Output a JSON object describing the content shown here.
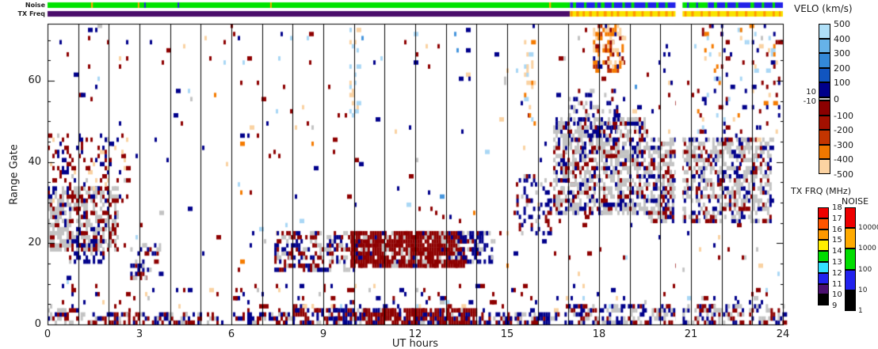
{
  "strips": {
    "noise_label": "Noise",
    "tx_label": "TX Freq",
    "noise_segments": [
      {
        "h": [
          0,
          17.05
        ],
        "color": "#00e300"
      },
      {
        "h": [
          17.05,
          20.5
        ],
        "color": "#2222e8"
      },
      {
        "h": [
          20.72,
          21.55
        ],
        "color": "#00e300"
      },
      {
        "h": [
          21.55,
          24
        ],
        "color": "#2222e8"
      }
    ],
    "noise_stripes": [
      {
        "h": 1.45,
        "w": 0.06,
        "color": "#ffaa00"
      },
      {
        "h": 2.97,
        "w": 0.05,
        "color": "#ffaa00"
      },
      {
        "h": 3.18,
        "w": 0.05,
        "color": "#2222e8"
      },
      {
        "h": 4.27,
        "w": 0.05,
        "color": "#2222e8"
      },
      {
        "h": 7.29,
        "w": 0.05,
        "color": "#ffaa00"
      },
      {
        "h": 16.4,
        "w": 0.06,
        "color": "#ffaa00"
      },
      {
        "h": 17.2,
        "w": 0.1,
        "color": "#00e300"
      },
      {
        "h": 17.55,
        "w": 0.08,
        "color": "#00e300"
      },
      {
        "h": 17.9,
        "w": 0.08,
        "color": "#00e300"
      },
      {
        "h": 18.12,
        "w": 0.12,
        "color": "#00e300"
      },
      {
        "h": 18.45,
        "w": 0.08,
        "color": "#00e300"
      },
      {
        "h": 18.8,
        "w": 0.08,
        "color": "#00e300"
      },
      {
        "h": 19.1,
        "w": 0.1,
        "color": "#00e300"
      },
      {
        "h": 19.55,
        "w": 0.08,
        "color": "#00e300"
      },
      {
        "h": 19.9,
        "w": 0.08,
        "color": "#00e300"
      },
      {
        "h": 20.2,
        "w": 0.08,
        "color": "#00e300"
      },
      {
        "h": 20.9,
        "w": 0.06,
        "color": "#2222e8"
      },
      {
        "h": 21.2,
        "w": 0.06,
        "color": "#2222e8"
      },
      {
        "h": 21.8,
        "w": 0.1,
        "color": "#00e300"
      },
      {
        "h": 22.15,
        "w": 0.08,
        "color": "#00e300"
      },
      {
        "h": 22.5,
        "w": 0.08,
        "color": "#00e300"
      },
      {
        "h": 23.0,
        "w": 0.12,
        "color": "#00e300"
      },
      {
        "h": 23.35,
        "w": 0.08,
        "color": "#00e300"
      },
      {
        "h": 23.7,
        "w": 0.08,
        "color": "#00e300"
      }
    ],
    "tx_segments": [
      {
        "h": [
          0,
          17.05
        ],
        "color": "#4a0d6b"
      },
      {
        "h": [
          17.05,
          20.5
        ],
        "color": "#f8e300"
      },
      {
        "h": [
          20.72,
          24
        ],
        "color": "#f8e300"
      }
    ],
    "tx_stripes": [
      {
        "h": 17.1,
        "w": 0.07,
        "color": "#ff9900"
      },
      {
        "h": 17.3,
        "w": 0.09,
        "color": "#ff9900"
      },
      {
        "h": 17.5,
        "w": 0.07,
        "color": "#ff9900"
      },
      {
        "h": 17.72,
        "w": 0.09,
        "color": "#ff9900"
      },
      {
        "h": 17.95,
        "w": 0.07,
        "color": "#ff9900"
      },
      {
        "h": 18.2,
        "w": 0.1,
        "color": "#ff9900"
      },
      {
        "h": 18.42,
        "w": 0.07,
        "color": "#ff9900"
      },
      {
        "h": 18.62,
        "w": 0.08,
        "color": "#ff9900"
      },
      {
        "h": 18.9,
        "w": 0.07,
        "color": "#ff9900"
      },
      {
        "h": 19.15,
        "w": 0.09,
        "color": "#ff9900"
      },
      {
        "h": 19.42,
        "w": 0.07,
        "color": "#ff9900"
      },
      {
        "h": 19.7,
        "w": 0.08,
        "color": "#ff9900"
      },
      {
        "h": 19.95,
        "w": 0.07,
        "color": "#ff9900"
      },
      {
        "h": 20.2,
        "w": 0.08,
        "color": "#ff9900"
      },
      {
        "h": 20.4,
        "w": 0.06,
        "color": "#ff9900"
      },
      {
        "h": 20.82,
        "w": 0.07,
        "color": "#ff9900"
      },
      {
        "h": 21.05,
        "w": 0.08,
        "color": "#ff9900"
      },
      {
        "h": 21.35,
        "w": 0.07,
        "color": "#ff9900"
      },
      {
        "h": 21.6,
        "w": 0.08,
        "color": "#ff9900"
      },
      {
        "h": 21.9,
        "w": 0.07,
        "color": "#ff9900"
      },
      {
        "h": 22.2,
        "w": 0.09,
        "color": "#ff9900"
      },
      {
        "h": 22.5,
        "w": 0.07,
        "color": "#ff9900"
      },
      {
        "h": 22.8,
        "w": 0.08,
        "color": "#ff9900"
      },
      {
        "h": 23.1,
        "w": 0.07,
        "color": "#ff9900"
      },
      {
        "h": 23.4,
        "w": 0.08,
        "color": "#ff9900"
      },
      {
        "h": 23.7,
        "w": 0.07,
        "color": "#ff9900"
      },
      {
        "h": 23.9,
        "w": 0.06,
        "color": "#ff9900"
      }
    ]
  },
  "axes": {
    "x": {
      "title": "UT hours",
      "min": 0,
      "max": 24,
      "major_ticks": [
        0,
        3,
        6,
        9,
        12,
        15,
        18,
        21,
        24
      ],
      "tick_labels": [
        "0",
        "3",
        "6",
        "9",
        "12",
        "15",
        "18",
        "21",
        "24"
      ],
      "minor_step": 1
    },
    "y": {
      "title": "Range Gate",
      "min": 0,
      "max": 74,
      "major_ticks": [
        0,
        20,
        40,
        60
      ],
      "tick_labels": [
        "0",
        "20",
        "40",
        "60"
      ],
      "minor_step": 5
    }
  },
  "legends": {
    "velo": {
      "title": "VELO (km/s)",
      "tick_labels": [
        "500",
        "400",
        "300",
        "200",
        "100",
        "0",
        "-100",
        "-200",
        "-300",
        "-400",
        "-500"
      ],
      "zero_band_labels": [
        "10",
        "-10"
      ],
      "colors_top_to_bottom": [
        "#b0e0f8",
        "#66b2e8",
        "#3388d8",
        "#1155c0",
        "#00008b",
        "#c3c3c3",
        "#8b0000",
        "#a31000",
        "#c33500",
        "#f07800",
        "#fcd3a2"
      ]
    },
    "txfrq": {
      "title": "TX FRQ (MHz)",
      "tick_labels": [
        "18",
        "17",
        "16",
        "15",
        "14",
        "13",
        "12",
        "11",
        "10",
        "9"
      ],
      "colors_top_to_bottom": [
        "#ee0000",
        "#ff5500",
        "#ff9900",
        "#ffee00",
        "#00dd00",
        "#33e0ff",
        "#2222ee",
        "#4b1070",
        "#000000"
      ]
    },
    "noise": {
      "title": "NOISE",
      "tick_labels": [
        "10000",
        "1000",
        "100",
        "10",
        "1"
      ],
      "colors_top_to_bottom": [
        "#ee0000",
        "#ffaa00",
        "#00dd00",
        "#2222ee",
        "#000000"
      ]
    }
  },
  "chart_data": {
    "type": "heatmap",
    "xlabel": "UT hours",
    "ylabel": "Range Gate",
    "xlim": [
      0,
      24
    ],
    "ylim": [
      0,
      74
    ],
    "hour_lines": [
      1,
      2,
      3,
      4,
      5,
      6,
      7,
      8,
      9,
      10,
      11,
      12,
      13,
      14,
      15,
      16,
      17,
      18,
      19,
      20,
      21,
      22,
      23
    ],
    "data_gap_hours": [
      20.5,
      20.72
    ],
    "seed": 1337,
    "palette": {
      "navy": "#00008b",
      "dred": "#8e0000",
      "gray": "#c3c3c3",
      "lblue": "#a9d7f5",
      "mblue": "#4595dd",
      "peach": "#fad2a2",
      "orange": "#f57b00",
      "red2": "#c03000"
    },
    "regions": [
      {
        "name": "base-speckle",
        "h": [
          0,
          24
        ],
        "g": [
          4,
          73
        ],
        "d": 0.013,
        "c": {
          "dred": 0.3,
          "navy": 0.3,
          "lblue": 0.1,
          "peach": 0.12,
          "gray": 0.08,
          "mblue": 0.05,
          "orange": 0.05
        }
      },
      {
        "name": "low-gate-speckle",
        "h": [
          0,
          24
        ],
        "g": [
          3,
          9
        ],
        "d": 0.045,
        "c": {
          "dred": 0.4,
          "navy": 0.35,
          "gray": 0.1,
          "peach": 0.08,
          "lblue": 0.07
        }
      },
      {
        "name": "left-gray-blob",
        "h": [
          0,
          2.3
        ],
        "g": [
          18,
          33
        ],
        "d": 0.6,
        "c": {
          "gray": 0.62,
          "dred": 0.28,
          "navy": 0.1
        }
      },
      {
        "name": "left-red-fringe",
        "h": [
          0,
          2.6
        ],
        "g": [
          30,
          46
        ],
        "d": 0.2,
        "c": {
          "dred": 0.5,
          "navy": 0.3,
          "peach": 0.1,
          "gray": 0.1
        }
      },
      {
        "name": "left-navy-patch",
        "h": [
          0.7,
          1.8
        ],
        "g": [
          15,
          20
        ],
        "d": 0.45,
        "c": {
          "navy": 0.65,
          "gray": 0.2,
          "dred": 0.15
        }
      },
      {
        "name": "hour3-cluster",
        "h": [
          2.7,
          3.7
        ],
        "g": [
          11,
          19
        ],
        "d": 0.32,
        "c": {
          "navy": 0.5,
          "gray": 0.28,
          "dred": 0.22
        }
      },
      {
        "name": "midband-pre",
        "h": [
          7.4,
          10.0
        ],
        "g": [
          13,
          22
        ],
        "d": 0.42,
        "c": {
          "dred": 0.45,
          "navy": 0.3,
          "gray": 0.25
        }
      },
      {
        "name": "midband-red-blob",
        "h": [
          9.9,
          13.6
        ],
        "g": [
          14,
          22
        ],
        "d": 0.88,
        "c": {
          "dred": 0.84,
          "gray": 0.1,
          "navy": 0.06
        }
      },
      {
        "name": "midband-post-navy",
        "h": [
          13.3,
          14.6
        ],
        "g": [
          15,
          22
        ],
        "d": 0.5,
        "c": {
          "navy": 0.6,
          "gray": 0.25,
          "dred": 0.15
        }
      },
      {
        "name": "hour16-cluster",
        "h": [
          15.3,
          16.4
        ],
        "g": [
          22,
          36
        ],
        "d": 0.3,
        "c": {
          "navy": 0.5,
          "dred": 0.3,
          "gray": 0.2
        }
      },
      {
        "name": "gray-scatter-blob-a",
        "h": [
          16.5,
          19.6
        ],
        "g": [
          27,
          50
        ],
        "d": 0.58,
        "c": {
          "gray": 0.6,
          "navy": 0.22,
          "dred": 0.18
        }
      },
      {
        "name": "gray-scatter-blob-b",
        "h": [
          19.6,
          23.6
        ],
        "g": [
          25,
          45
        ],
        "d": 0.52,
        "c": {
          "gray": 0.62,
          "navy": 0.2,
          "dred": 0.18
        }
      },
      {
        "name": "navy-high-patch",
        "h": [
          17.0,
          18.6
        ],
        "g": [
          45,
          57
        ],
        "d": 0.25,
        "c": {
          "navy": 0.55,
          "gray": 0.25,
          "dred": 0.2
        }
      },
      {
        "name": "topright-orange-cluster",
        "h": [
          17.8,
          18.8
        ],
        "g": [
          62,
          73
        ],
        "d": 0.5,
        "c": {
          "peach": 0.38,
          "orange": 0.3,
          "red2": 0.17,
          "dred": 0.08,
          "navy": 0.07
        }
      },
      {
        "name": "streak-15p7",
        "h": [
          15.55,
          15.9
        ],
        "g": [
          48,
          70
        ],
        "d": 0.22,
        "c": {
          "peach": 0.45,
          "orange": 0.3,
          "lblue": 0.25
        }
      },
      {
        "name": "streak-10",
        "h": [
          9.85,
          10.15
        ],
        "g": [
          50,
          72
        ],
        "d": 0.18,
        "c": {
          "lblue": 0.55,
          "peach": 0.45
        }
      },
      {
        "name": "upper-right-speckle",
        "h": [
          21.2,
          24
        ],
        "g": [
          45,
          73
        ],
        "d": 0.1,
        "c": {
          "navy": 0.3,
          "dred": 0.25,
          "lblue": 0.15,
          "orange": 0.15,
          "peach": 0.15
        }
      },
      {
        "name": "gate5-mid-speckle",
        "h": [
          8,
          14
        ],
        "g": [
          3,
          6
        ],
        "d": 0.12,
        "c": {
          "dred": 0.5,
          "navy": 0.3,
          "lblue": 0.1,
          "peach": 0.1
        }
      },
      {
        "name": "bottom-0-1",
        "h": [
          0,
          1
        ],
        "g": [
          0,
          3
        ],
        "d": 0.6,
        "c": {
          "gray": 0.45,
          "dred": 0.35,
          "navy": 0.2
        }
      },
      {
        "name": "bottom-1-4p5",
        "h": [
          1,
          4.5
        ],
        "g": [
          0,
          2
        ],
        "d": 0.55,
        "c": {
          "dred": 0.55,
          "navy": 0.25,
          "gray": 0.2
        }
      },
      {
        "name": "bottom-4p5-8",
        "h": [
          4.5,
          8
        ],
        "g": [
          0,
          2
        ],
        "d": 0.4,
        "c": {
          "navy": 0.4,
          "dred": 0.4,
          "gray": 0.2
        }
      },
      {
        "name": "bottom-8-10p3",
        "h": [
          8,
          10.3
        ],
        "g": [
          0,
          3
        ],
        "d": 0.6,
        "c": {
          "navy": 0.5,
          "dred": 0.35,
          "gray": 0.15
        }
      },
      {
        "name": "bottom-10p3-14",
        "h": [
          10.3,
          14
        ],
        "g": [
          0,
          3
        ],
        "d": 0.85,
        "c": {
          "dred": 0.8,
          "navy": 0.12,
          "gray": 0.08
        }
      },
      {
        "name": "bottom-14-17",
        "h": [
          14,
          17
        ],
        "g": [
          0,
          2
        ],
        "d": 0.5,
        "c": {
          "navy": 0.45,
          "dred": 0.4,
          "gray": 0.15
        }
      },
      {
        "name": "bottom-17-24",
        "h": [
          17,
          24
        ],
        "g": [
          0,
          4
        ],
        "d": 0.42,
        "c": {
          "navy": 0.33,
          "dred": 0.3,
          "gray": 0.37
        }
      }
    ]
  }
}
